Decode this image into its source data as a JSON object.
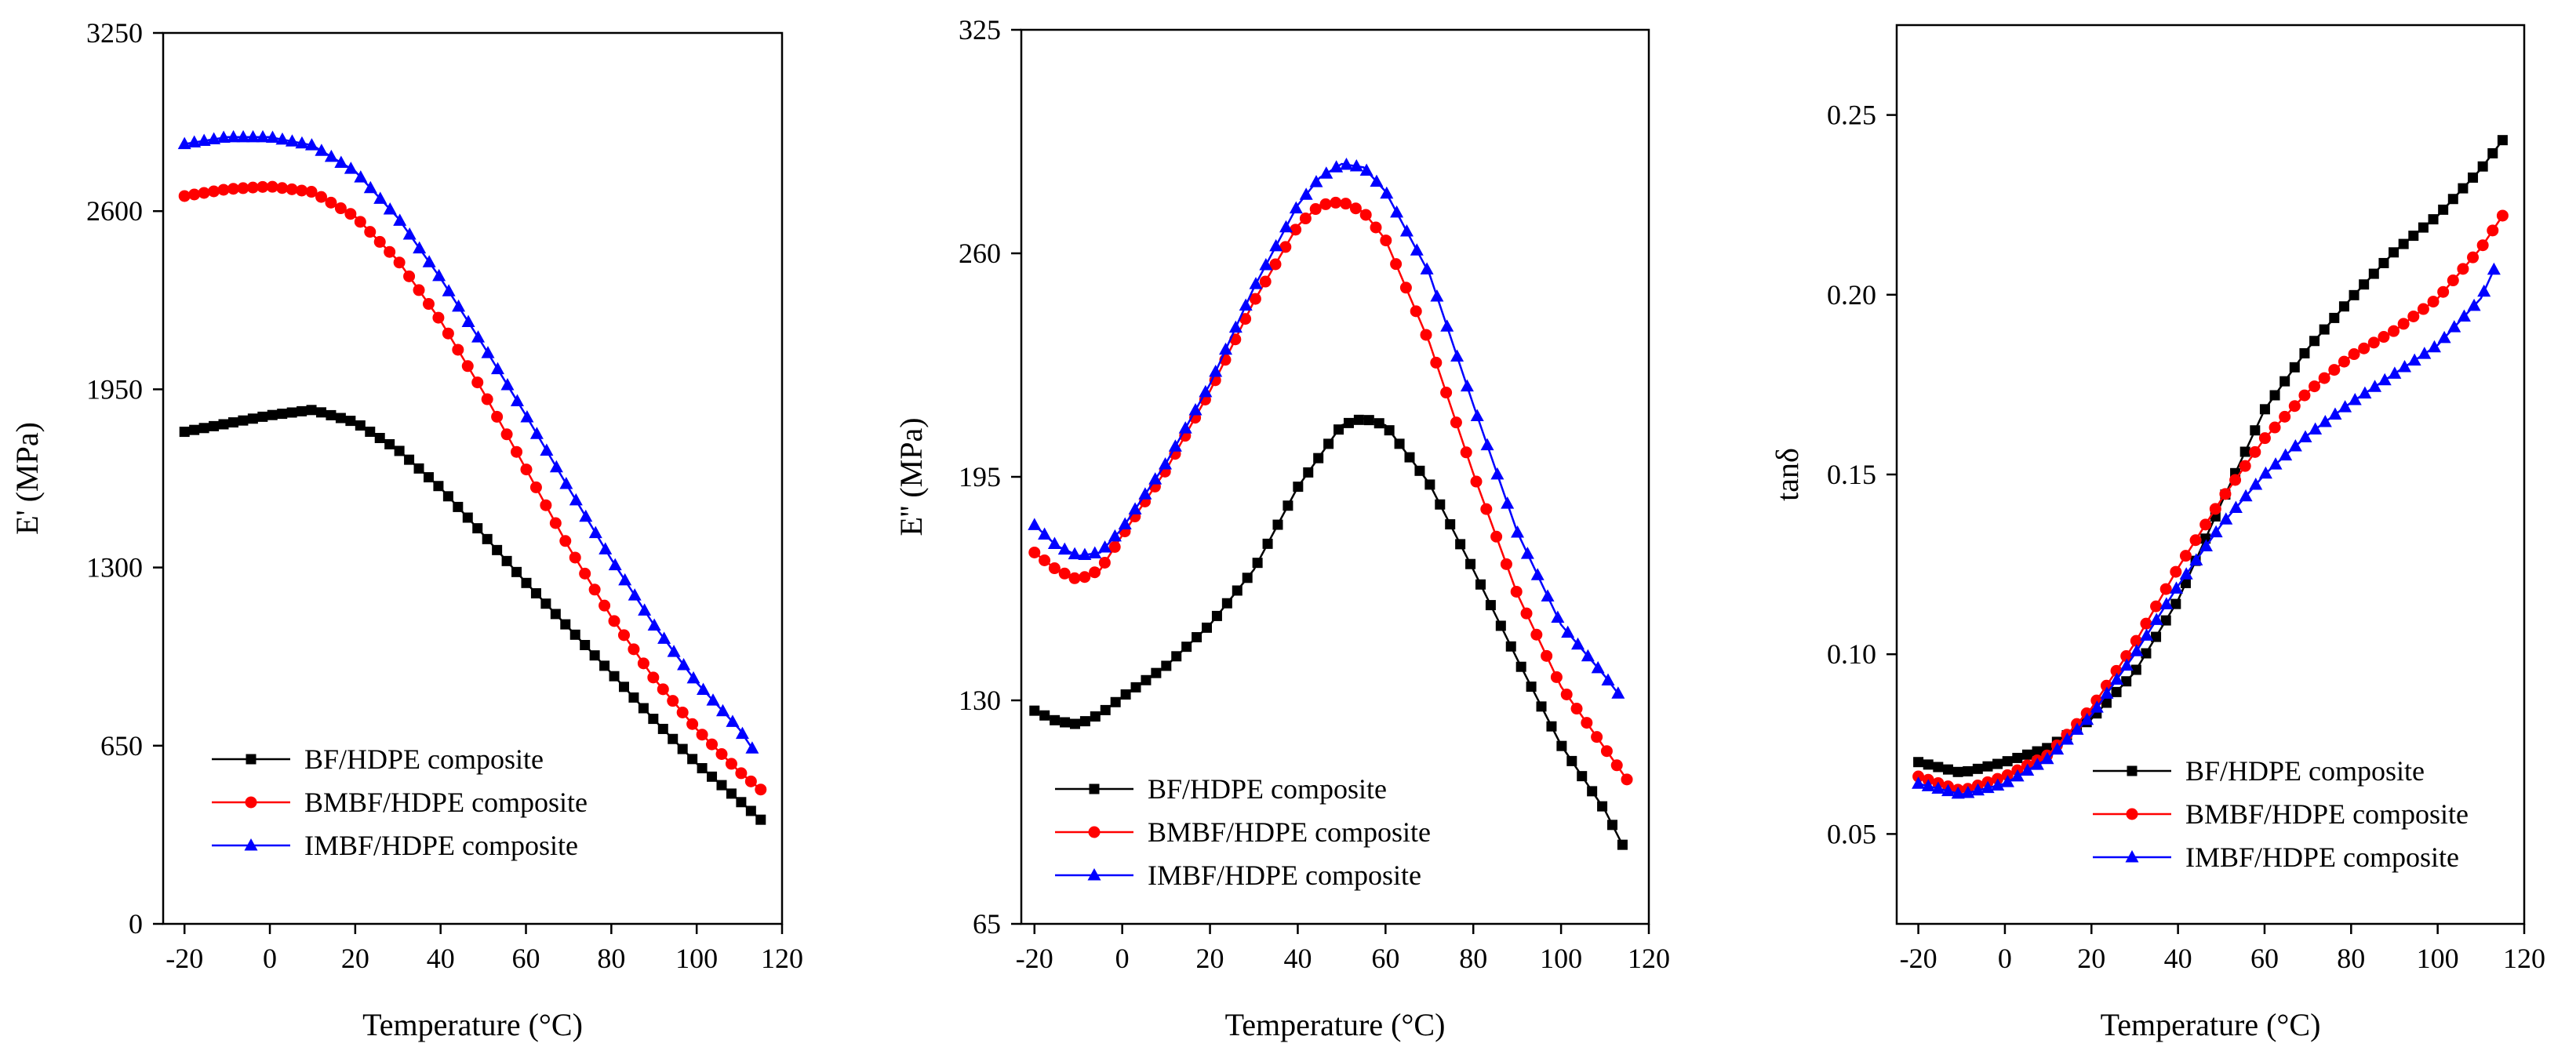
{
  "chart_data": [
    {
      "type": "line",
      "xlabel": "Temperature (°C)",
      "ylabel": "E' (MPa)",
      "xlim": [
        -25,
        120
      ],
      "ylim": [
        0,
        3250
      ],
      "xticks": [
        "-20",
        "0",
        "20",
        "40",
        "60",
        "80",
        "100",
        "120"
      ],
      "yticks": [
        "0",
        "650",
        "1300",
        "1950",
        "2600",
        "3250"
      ],
      "grid": false,
      "legend_position": "bottom-left",
      "series": [
        {
          "name": "BF/HDPE composite",
          "color": "#000000",
          "marker": "square",
          "x": [
            -20,
            -10,
            0,
            10,
            20,
            30,
            40,
            50,
            60,
            70,
            80,
            90,
            100,
            110,
            115
          ],
          "y": [
            1795,
            1825,
            1855,
            1875,
            1830,
            1730,
            1590,
            1420,
            1245,
            1080,
            915,
            745,
            585,
            450,
            380
          ]
        },
        {
          "name": "BMBF/HDPE composite",
          "color": "#ff0000",
          "marker": "circle",
          "x": [
            -20,
            -10,
            0,
            10,
            20,
            30,
            40,
            50,
            60,
            70,
            80,
            90,
            100,
            110,
            115
          ],
          "y": [
            2655,
            2680,
            2690,
            2670,
            2580,
            2420,
            2200,
            1940,
            1660,
            1375,
            1120,
            895,
            710,
            555,
            490
          ]
        },
        {
          "name": "IMBF/HDPE composite",
          "color": "#0000ff",
          "marker": "triangle",
          "x": [
            -20,
            -10,
            0,
            10,
            20,
            30,
            40,
            50,
            60,
            70,
            80,
            90,
            100,
            110,
            113
          ],
          "y": [
            2845,
            2870,
            2870,
            2840,
            2745,
            2575,
            2355,
            2110,
            1855,
            1590,
            1330,
            1090,
            880,
            710,
            640
          ]
        }
      ]
    },
    {
      "type": "line",
      "xlabel": "Temperature (°C)",
      "ylabel": "E'' (MPa)",
      "xlim": [
        -23,
        120
      ],
      "ylim": [
        65,
        325
      ],
      "xticks": [
        "-20",
        "0",
        "20",
        "40",
        "60",
        "80",
        "100",
        "120"
      ],
      "yticks": [
        "65",
        "130",
        "195",
        "260",
        "325"
      ],
      "grid": false,
      "legend_position": "bottom-left",
      "series": [
        {
          "name": "BF/HDPE composite",
          "color": "#000000",
          "marker": "square",
          "x": [
            -20,
            -15,
            -10,
            -5,
            0,
            10,
            20,
            30,
            40,
            50,
            55,
            60,
            70,
            80,
            90,
            100,
            110,
            114
          ],
          "y": [
            127,
            124,
            123,
            126,
            131,
            140,
            152,
            168,
            192,
            210,
            212,
            210,
            193,
            168,
            142,
            117,
            98,
            88
          ]
        },
        {
          "name": "BMBF/HDPE composite",
          "color": "#ff0000",
          "marker": "circle",
          "x": [
            -20,
            -15,
            -10,
            -5,
            0,
            10,
            20,
            30,
            40,
            45,
            50,
            55,
            60,
            70,
            80,
            90,
            100,
            110,
            115
          ],
          "y": [
            173,
            168,
            165,
            168,
            178,
            197,
            220,
            246,
            268,
            274,
            275,
            272,
            264,
            234,
            196,
            161,
            134,
            116,
            107
          ]
        },
        {
          "name": "IMBF/HDPE composite",
          "color": "#0000ff",
          "marker": "triangle",
          "x": [
            -20,
            -15,
            -10,
            -5,
            0,
            10,
            20,
            30,
            40,
            45,
            50,
            55,
            60,
            70,
            80,
            90,
            100,
            110,
            113
          ],
          "y": [
            181,
            175,
            172,
            173,
            180,
            199,
            222,
            250,
            274,
            282,
            286,
            285,
            278,
            254,
            216,
            179,
            152,
            137,
            132
          ]
        }
      ]
    },
    {
      "type": "line",
      "xlabel": "Temperature (°C)",
      "ylabel": "tanδ",
      "xlim": [
        -25,
        120
      ],
      "ylim": [
        0.025,
        0.275
      ],
      "xticks": [
        "-20",
        "0",
        "20",
        "40",
        "60",
        "80",
        "100",
        "120"
      ],
      "yticks": [
        "0.05",
        "0.10",
        "0.15",
        "0.20",
        "0.25"
      ],
      "grid": false,
      "legend_position": "bottom-right",
      "series": [
        {
          "name": "BF/HDPE composite",
          "color": "#000000",
          "marker": "square",
          "x": [
            -20,
            -10,
            0,
            10,
            20,
            30,
            40,
            50,
            60,
            70,
            80,
            90,
            100,
            110,
            115
          ],
          "y": [
            0.07,
            0.067,
            0.07,
            0.074,
            0.082,
            0.095,
            0.115,
            0.142,
            0.168,
            0.185,
            0.199,
            0.212,
            0.222,
            0.235,
            0.243
          ]
        },
        {
          "name": "BMBF/HDPE composite",
          "color": "#ff0000",
          "marker": "circle",
          "x": [
            -20,
            -10,
            0,
            10,
            20,
            30,
            40,
            50,
            60,
            70,
            80,
            90,
            100,
            110,
            115
          ],
          "y": [
            0.066,
            0.062,
            0.066,
            0.072,
            0.085,
            0.103,
            0.124,
            0.143,
            0.16,
            0.173,
            0.183,
            0.19,
            0.199,
            0.213,
            0.222
          ]
        },
        {
          "name": "IMBF/HDPE composite",
          "color": "#0000ff",
          "marker": "triangle",
          "x": [
            -20,
            -10,
            0,
            10,
            20,
            30,
            40,
            50,
            60,
            70,
            80,
            90,
            100,
            110,
            113
          ],
          "y": [
            0.064,
            0.061,
            0.064,
            0.071,
            0.083,
            0.1,
            0.119,
            0.136,
            0.15,
            0.161,
            0.17,
            0.178,
            0.186,
            0.199,
            0.207
          ]
        }
      ]
    }
  ]
}
